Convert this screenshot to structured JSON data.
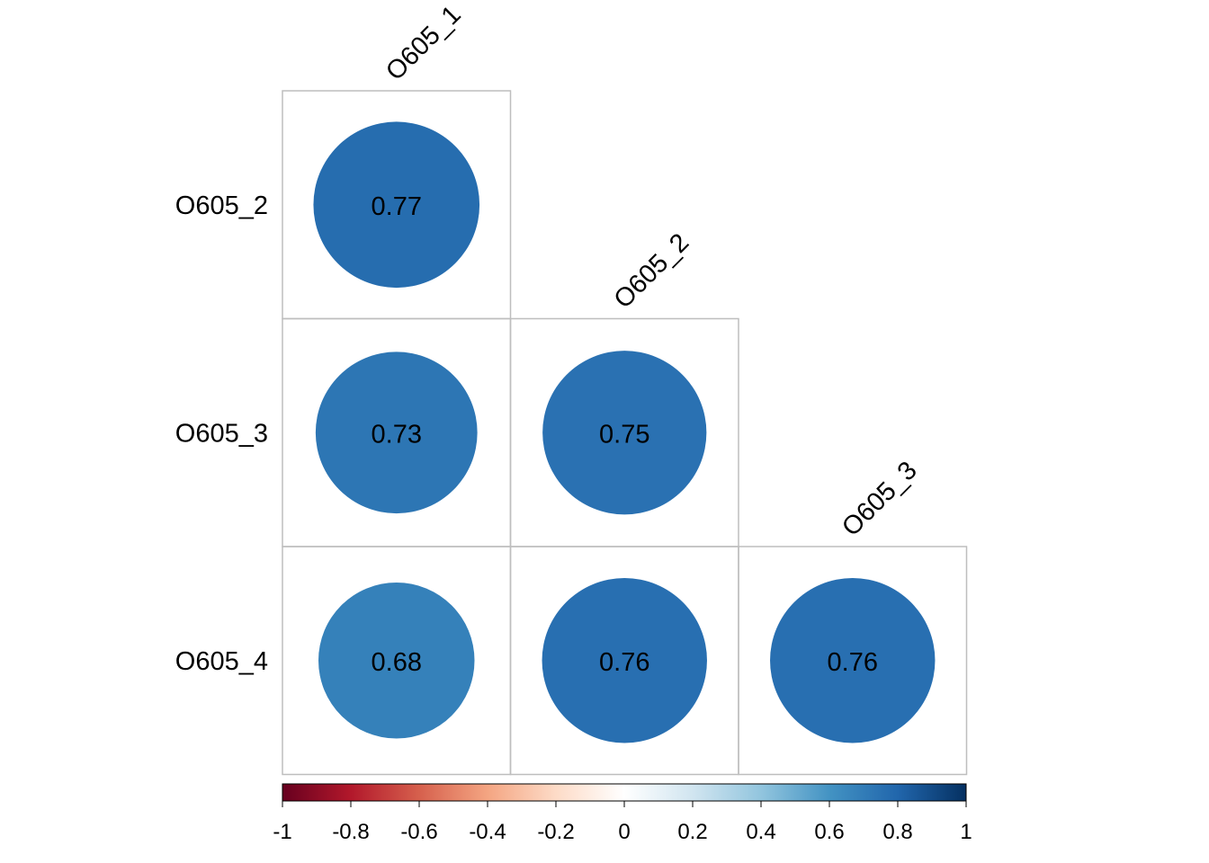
{
  "chart_data": {
    "type": "heatmap",
    "variables": [
      "O605_1",
      "O605_2",
      "O605_3",
      "O605_4"
    ],
    "column_labels": [
      "O605_1",
      "O605_2",
      "O605_3"
    ],
    "row_labels": [
      "O605_2",
      "O605_3",
      "O605_4"
    ],
    "cells": [
      {
        "row": "O605_2",
        "col": "O605_1",
        "value": 0.77,
        "label": "0.77"
      },
      {
        "row": "O605_3",
        "col": "O605_1",
        "value": 0.73,
        "label": "0.73"
      },
      {
        "row": "O605_3",
        "col": "O605_2",
        "value": 0.75,
        "label": "0.75"
      },
      {
        "row": "O605_4",
        "col": "O605_1",
        "value": 0.68,
        "label": "0.68"
      },
      {
        "row": "O605_4",
        "col": "O605_2",
        "value": 0.76,
        "label": "0.76"
      },
      {
        "row": "O605_4",
        "col": "O605_3",
        "value": 0.76,
        "label": "0.76"
      }
    ],
    "colorbar": {
      "range": [
        -1,
        1
      ],
      "ticks": [
        -1,
        -0.8,
        -0.6,
        -0.4,
        -0.2,
        0,
        0.2,
        0.4,
        0.6,
        0.8,
        1
      ],
      "tick_labels": [
        "-1",
        "-0.8",
        "-0.6",
        "-0.4",
        "-0.2",
        "0",
        "0.2",
        "0.4",
        "0.6",
        "0.8",
        "1"
      ],
      "palette": [
        "#67001F",
        "#B2182B",
        "#D6604D",
        "#F4A582",
        "#FDDBC7",
        "#FFFFFF",
        "#D1E5F0",
        "#92C5DE",
        "#4393C3",
        "#2166AC",
        "#053061"
      ],
      "placement": "bottom"
    },
    "grid": true,
    "shape": "circle",
    "layout": "lower-triangle"
  }
}
